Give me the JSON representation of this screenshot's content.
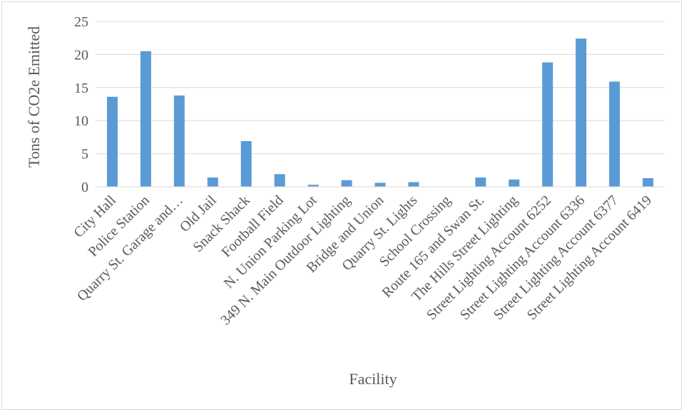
{
  "chart_data": {
    "type": "bar",
    "title": "",
    "xlabel": "Facility",
    "ylabel": "Tons of CO2e Emitted",
    "ylim": [
      0,
      25
    ],
    "yticks": [
      0,
      5,
      10,
      15,
      20,
      25
    ],
    "grid": true,
    "legend": "none",
    "bar_color": "#5b9bd5",
    "categories": [
      "City Hall",
      "Police Station",
      "Quarry St. Garage and…",
      "Old Jail",
      "Snack Shack",
      "Football Field",
      "N. Union Parking Lot",
      "349 N. Main Outdoor Lighting",
      "Bridge and Union",
      "Quarry St. Lights",
      "School Crossing",
      "Route 165 and Swan St.",
      "The Hills Street Lighting",
      "Street Lighting Account 6252",
      "Street Lighting Account 6336",
      "Street Lighting Account 6377",
      "Street Lighting Account 6419"
    ],
    "values": [
      13.6,
      20.5,
      13.8,
      1.4,
      6.9,
      1.9,
      0.3,
      1.0,
      0.6,
      0.7,
      0,
      1.4,
      1.1,
      18.8,
      22.4,
      15.9,
      1.3
    ]
  }
}
